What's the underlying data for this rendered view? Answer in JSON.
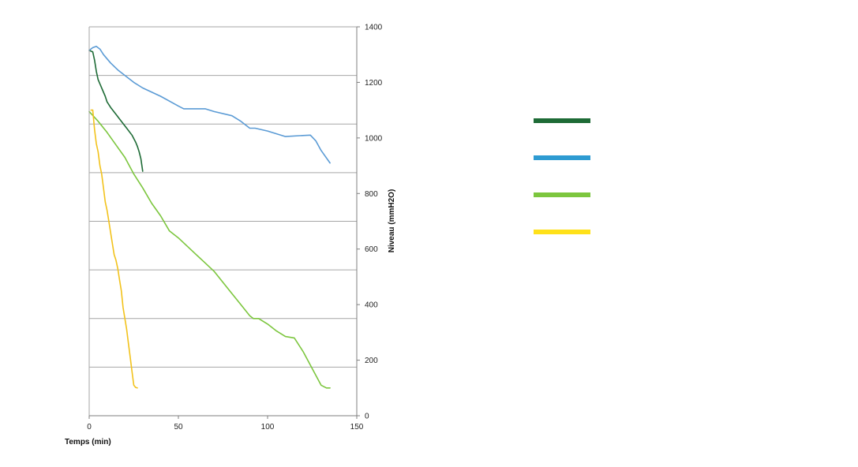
{
  "chart_data": {
    "type": "line",
    "title": "",
    "xlabel": "Temps (min)",
    "ylabel": "Niveau (mmH2O)",
    "xlim": [
      0,
      150
    ],
    "ylim": [
      0,
      1400
    ],
    "x_ticks": [
      0,
      50,
      100,
      150
    ],
    "y_ticks": [
      0,
      200,
      400,
      600,
      800,
      1000,
      1200,
      1400
    ],
    "y_axis_position": "right",
    "grid": "horizontal-gray",
    "legend": "right (colored line swatches, no labels)",
    "series": [
      {
        "color": "#1e6b36",
        "points": [
          [
            0,
            1315
          ],
          [
            2,
            1310
          ],
          [
            3,
            1280
          ],
          [
            4,
            1240
          ],
          [
            5,
            1210
          ],
          [
            7,
            1180
          ],
          [
            9,
            1150
          ],
          [
            10,
            1130
          ],
          [
            12,
            1110
          ],
          [
            15,
            1085
          ],
          [
            18,
            1060
          ],
          [
            21,
            1035
          ],
          [
            24,
            1010
          ],
          [
            26,
            985
          ],
          [
            27,
            970
          ],
          [
            28,
            950
          ],
          [
            29,
            925
          ],
          [
            30,
            880
          ]
        ]
      },
      {
        "color": "#5b9bd5",
        "points": [
          [
            0,
            1315
          ],
          [
            2,
            1325
          ],
          [
            4,
            1330
          ],
          [
            6,
            1320
          ],
          [
            8,
            1300
          ],
          [
            12,
            1270
          ],
          [
            16,
            1245
          ],
          [
            20,
            1225
          ],
          [
            25,
            1200
          ],
          [
            30,
            1180
          ],
          [
            40,
            1150
          ],
          [
            50,
            1115
          ],
          [
            53,
            1105
          ],
          [
            60,
            1105
          ],
          [
            65,
            1105
          ],
          [
            70,
            1095
          ],
          [
            80,
            1080
          ],
          [
            85,
            1060
          ],
          [
            90,
            1035
          ],
          [
            93,
            1035
          ],
          [
            100,
            1025
          ],
          [
            110,
            1005
          ],
          [
            118,
            1008
          ],
          [
            124,
            1010
          ],
          [
            127,
            990
          ],
          [
            130,
            955
          ],
          [
            135,
            910
          ]
        ]
      },
      {
        "color": "#7cc63e",
        "points": [
          [
            0,
            1095
          ],
          [
            5,
            1060
          ],
          [
            10,
            1020
          ],
          [
            15,
            975
          ],
          [
            20,
            930
          ],
          [
            25,
            870
          ],
          [
            30,
            820
          ],
          [
            35,
            765
          ],
          [
            40,
            720
          ],
          [
            45,
            665
          ],
          [
            50,
            640
          ],
          [
            55,
            610
          ],
          [
            60,
            580
          ],
          [
            65,
            550
          ],
          [
            70,
            520
          ],
          [
            75,
            480
          ],
          [
            80,
            440
          ],
          [
            85,
            400
          ],
          [
            90,
            360
          ],
          [
            92,
            350
          ],
          [
            95,
            350
          ],
          [
            100,
            330
          ],
          [
            105,
            305
          ],
          [
            110,
            285
          ],
          [
            115,
            280
          ],
          [
            120,
            230
          ],
          [
            125,
            170
          ],
          [
            130,
            110
          ],
          [
            133,
            100
          ],
          [
            135,
            100
          ]
        ]
      },
      {
        "color": "#f2c21b",
        "points": [
          [
            1,
            1100
          ],
          [
            2,
            1100
          ],
          [
            3,
            1030
          ],
          [
            4,
            980
          ],
          [
            5,
            950
          ],
          [
            6,
            900
          ],
          [
            7,
            870
          ],
          [
            8,
            820
          ],
          [
            9,
            770
          ],
          [
            10,
            740
          ],
          [
            11,
            700
          ],
          [
            12,
            660
          ],
          [
            14,
            580
          ],
          [
            15,
            560
          ],
          [
            16,
            530
          ],
          [
            17,
            490
          ],
          [
            18,
            450
          ],
          [
            19,
            390
          ],
          [
            20,
            350
          ],
          [
            21,
            310
          ],
          [
            22,
            260
          ],
          [
            23,
            210
          ],
          [
            24,
            160
          ],
          [
            25,
            110
          ],
          [
            26,
            102
          ],
          [
            27,
            100
          ]
        ]
      }
    ]
  }
}
